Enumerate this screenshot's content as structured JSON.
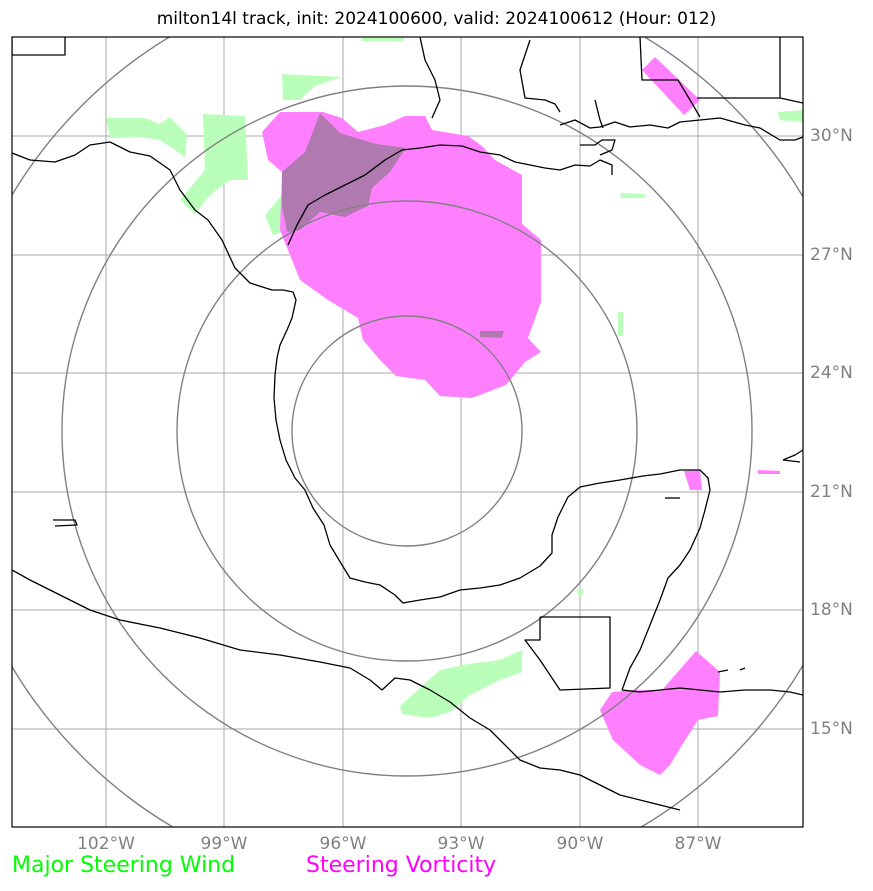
{
  "title": "milton14l track, init: 2024100600, valid: 2024100612 (Hour: 012)",
  "lat_labels": [
    "30°N",
    "27°N",
    "24°N",
    "21°N",
    "18°N",
    "15°N"
  ],
  "lon_labels": [
    "102°W",
    "99°W",
    "96°W",
    "93°W",
    "90°W",
    "87°W"
  ],
  "legend": {
    "wind": "Major Steering Wind",
    "vorticity": "Steering Vorticity"
  },
  "colors": {
    "wind": "#00ff00",
    "vorticity": "#ff00ff",
    "grid": "#808080",
    "coast": "#000000"
  }
}
